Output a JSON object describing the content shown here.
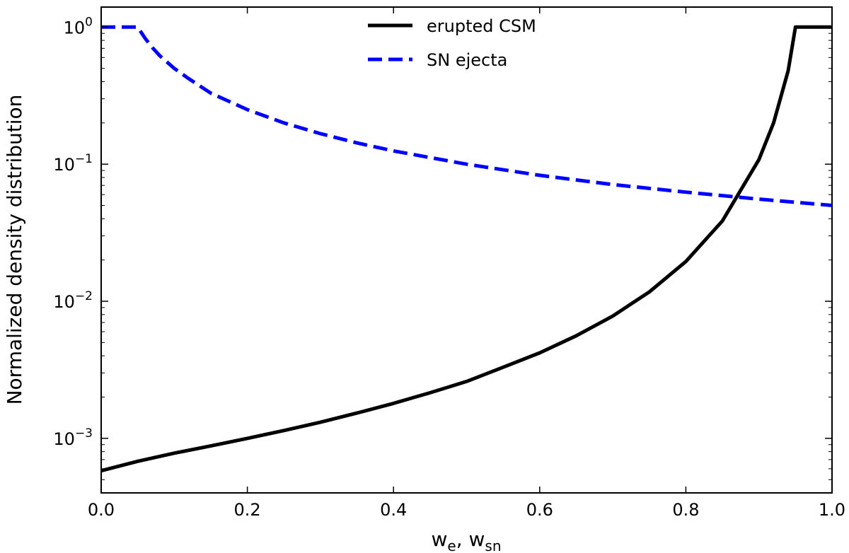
{
  "chart_data": {
    "type": "line",
    "title": "",
    "xlabel": {
      "main_1": "w",
      "sub_1": "e",
      "sep": ", ",
      "main_2": "w",
      "sub_2": "sn"
    },
    "ylabel": "Normalized density distribution",
    "xlim": [
      0.0,
      1.0
    ],
    "ylim": [
      0.0004,
      1.4
    ],
    "yscale": "log",
    "grid": false,
    "legend_position": "top-center",
    "x_ticks": [
      {
        "value": 0.0,
        "label": "0.0"
      },
      {
        "value": 0.2,
        "label": "0.2"
      },
      {
        "value": 0.4,
        "label": "0.4"
      },
      {
        "value": 0.6,
        "label": "0.6"
      },
      {
        "value": 0.8,
        "label": "0.8"
      },
      {
        "value": 1.0,
        "label": "1.0"
      }
    ],
    "y_ticks": [
      {
        "value": 0.001,
        "base": "10",
        "exp": "−3"
      },
      {
        "value": 0.01,
        "base": "10",
        "exp": "−2"
      },
      {
        "value": 0.1,
        "base": "10",
        "exp": "−1"
      },
      {
        "value": 1,
        "base": "10",
        "exp": "0"
      }
    ],
    "series": [
      {
        "name": "erupted CSM",
        "color": "#000000",
        "style": "solid",
        "x": [
          0.0,
          0.05,
          0.1,
          0.15,
          0.2,
          0.25,
          0.3,
          0.35,
          0.4,
          0.45,
          0.5,
          0.55,
          0.6,
          0.65,
          0.7,
          0.75,
          0.8,
          0.85,
          0.9,
          0.92,
          0.94,
          0.95,
          1.0
        ],
        "y": [
          0.00058,
          0.00068,
          0.00078,
          0.00088,
          0.001,
          0.00114,
          0.00131,
          0.00153,
          0.0018,
          0.00215,
          0.0026,
          0.0033,
          0.0042,
          0.0056,
          0.0078,
          0.0117,
          0.0195,
          0.0385,
          0.108,
          0.2,
          0.48,
          1.0,
          1.0
        ]
      },
      {
        "name": "SN ejecta",
        "color": "#0000ff",
        "style": "dashed",
        "x": [
          0.0,
          0.05,
          0.06,
          0.07,
          0.08,
          0.1,
          0.12,
          0.15,
          0.2,
          0.25,
          0.3,
          0.35,
          0.4,
          0.5,
          0.6,
          0.7,
          0.8,
          0.9,
          1.0
        ],
        "y": [
          1.0,
          1.0,
          0.83,
          0.71,
          0.62,
          0.5,
          0.42,
          0.33,
          0.25,
          0.2,
          0.167,
          0.143,
          0.125,
          0.1,
          0.083,
          0.071,
          0.0625,
          0.0556,
          0.05
        ]
      }
    ]
  }
}
